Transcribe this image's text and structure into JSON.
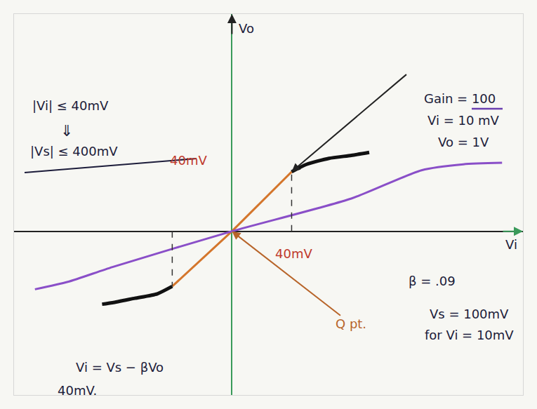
{
  "chart_data": {
    "type": "line",
    "x_label": "Vi",
    "y_label": "Vo",
    "xlim": [
      -146,
      195
    ],
    "ylim": [
      -11,
      14.6
    ],
    "xticks": [],
    "yticks": [],
    "tick_labels": false,
    "grid": false,
    "knee_x": [
      -40,
      40
    ],
    "series": [
      {
        "color": "#d4762c",
        "x": [
          -40,
          0,
          40
        ],
        "values": [
          -3.7,
          0,
          4.0
        ]
      },
      {
        "color": "#111111",
        "x": [
          40,
          50,
          65,
          80,
          92
        ],
        "values": [
          4.0,
          4.5,
          4.9,
          5.1,
          5.3
        ]
      },
      {
        "color": "#111111",
        "x": [
          -40,
          -50,
          -65,
          -80,
          -87
        ],
        "values": [
          -3.7,
          -4.2,
          -4.5,
          -4.8,
          -4.9
        ]
      },
      {
        "color": "#8a4fc8",
        "x": [
          -132,
          -110,
          -80,
          0,
          80,
          127,
          155,
          181
        ],
        "values": [
          -3.9,
          -3.4,
          -2.4,
          0,
          2.2,
          4.1,
          4.5,
          4.6
        ]
      }
    ],
    "annotations": [
      "|Vi| ≤ 40mV",
      "⇓",
      "|Vs| ≤ 400mV",
      "40mV",
      "40mV",
      "Gain = 100",
      "Vi = 10 mV",
      "Vo = 1V",
      "β = .09",
      "Vs = 100mV",
      "for Vi = 10mV",
      "Q pt.",
      "Vi = Vs − βVo",
      "40mV."
    ]
  }
}
